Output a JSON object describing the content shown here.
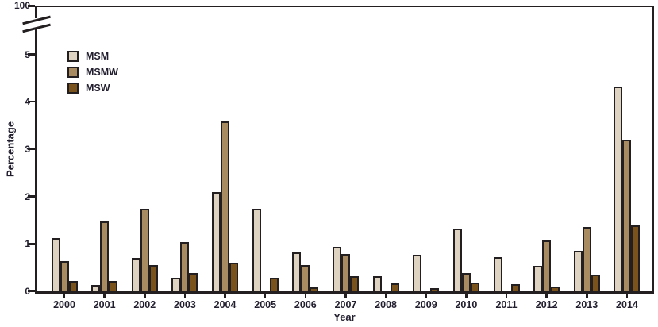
{
  "figure": {
    "ylabel": "Percentage",
    "xlabel": "Year",
    "broken_axis_top_label": "100"
  },
  "colors": {
    "axis": "#231f20",
    "text": "#221e2e",
    "msm": "#ded2c0",
    "msmw": "#a98b62",
    "msw": "#7a531c",
    "background": "#ffffff"
  },
  "chart_data": {
    "type": "bar",
    "title": "",
    "xlabel": "Year",
    "ylabel": "Percentage",
    "categories": [
      "2000",
      "2001",
      "2002",
      "2003",
      "2004",
      "2005",
      "2006",
      "2007",
      "2008",
      "2009",
      "2010",
      "2011",
      "2012",
      "2013",
      "2014"
    ],
    "series": [
      {
        "name": "MSM",
        "color": "#ded2c0",
        "values": [
          1.12,
          0.14,
          0.71,
          0.28,
          2.09,
          1.74,
          0.82,
          0.94,
          0.32,
          0.77,
          1.32,
          0.72,
          0.53,
          0.86,
          4.33
        ]
      },
      {
        "name": "MSMW",
        "color": "#a98b62",
        "values": [
          0.64,
          1.48,
          1.74,
          1.04,
          3.58,
          0,
          0.55,
          0.79,
          0,
          0,
          0.38,
          0,
          1.07,
          1.35,
          3.2
        ]
      },
      {
        "name": "MSW",
        "color": "#7a531c",
        "values": [
          0.22,
          0.22,
          0.56,
          0.38,
          0.6,
          0.28,
          0.08,
          0.32,
          0.17,
          0.07,
          0.18,
          0.15,
          0.1,
          0.36,
          1.39
        ]
      }
    ],
    "y_axis": {
      "ticks": [
        0,
        1,
        2,
        3,
        4,
        5
      ],
      "broken_axis_top_label": "100",
      "axis_break": true,
      "ylim_display": [
        0,
        5.45
      ]
    },
    "grid": false,
    "legend_position": "upper-left-inside"
  }
}
